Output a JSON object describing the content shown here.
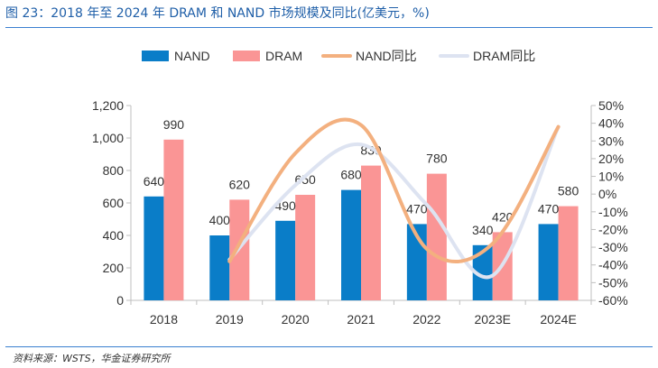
{
  "header": {
    "title": "图 23：2018 年至 2024 年 DRAM 和 NAND 市场规模及同比(亿美元，%)"
  },
  "footer": {
    "source": "资料来源：WSTS，华金证券研究所"
  },
  "colors": {
    "nand": "#0a7dc8",
    "dram": "#fa9595",
    "nand_yoy": "#f3b07f",
    "dram_yoy": "#dde3f1",
    "accent": "#1f5fa8"
  },
  "chart_data": {
    "type": "bar",
    "categories": [
      "2018",
      "2019",
      "2020",
      "2021",
      "2022",
      "2023E",
      "2024E"
    ],
    "series": [
      {
        "name": "NAND",
        "type": "bar",
        "axis": "left",
        "values": [
          640,
          400,
          490,
          680,
          470,
          340,
          470
        ]
      },
      {
        "name": "DRAM",
        "type": "bar",
        "axis": "left",
        "values": [
          990,
          620,
          650,
          830,
          780,
          420,
          580
        ]
      },
      {
        "name": "NAND同比",
        "type": "line",
        "axis": "right",
        "values": [
          null,
          -38,
          23,
          39,
          -31,
          -28,
          38
        ]
      },
      {
        "name": "DRAM同比",
        "type": "line",
        "axis": "right",
        "values": [
          null,
          -37,
          5,
          28,
          -6,
          -46,
          38
        ]
      }
    ],
    "y_left": {
      "ylim": [
        0,
        1200
      ],
      "ticks": [
        "0",
        "200",
        "400",
        "600",
        "800",
        "1,000",
        "1,200"
      ],
      "tick_values": [
        0,
        200,
        400,
        600,
        800,
        1000,
        1200
      ]
    },
    "y_right": {
      "ylim": [
        -60,
        50
      ],
      "ticks": [
        "-60%",
        "-50%",
        "-40%",
        "-30%",
        "-20%",
        "-10%",
        "0%",
        "10%",
        "20%",
        "30%",
        "40%",
        "50%"
      ],
      "tick_values": [
        -60,
        -50,
        -40,
        -30,
        -20,
        -10,
        0,
        10,
        20,
        30,
        40,
        50
      ]
    },
    "legend": {
      "placement": "top",
      "entries": [
        "NAND",
        "DRAM",
        "NAND同比",
        "DRAM同比"
      ]
    },
    "grid": false
  }
}
